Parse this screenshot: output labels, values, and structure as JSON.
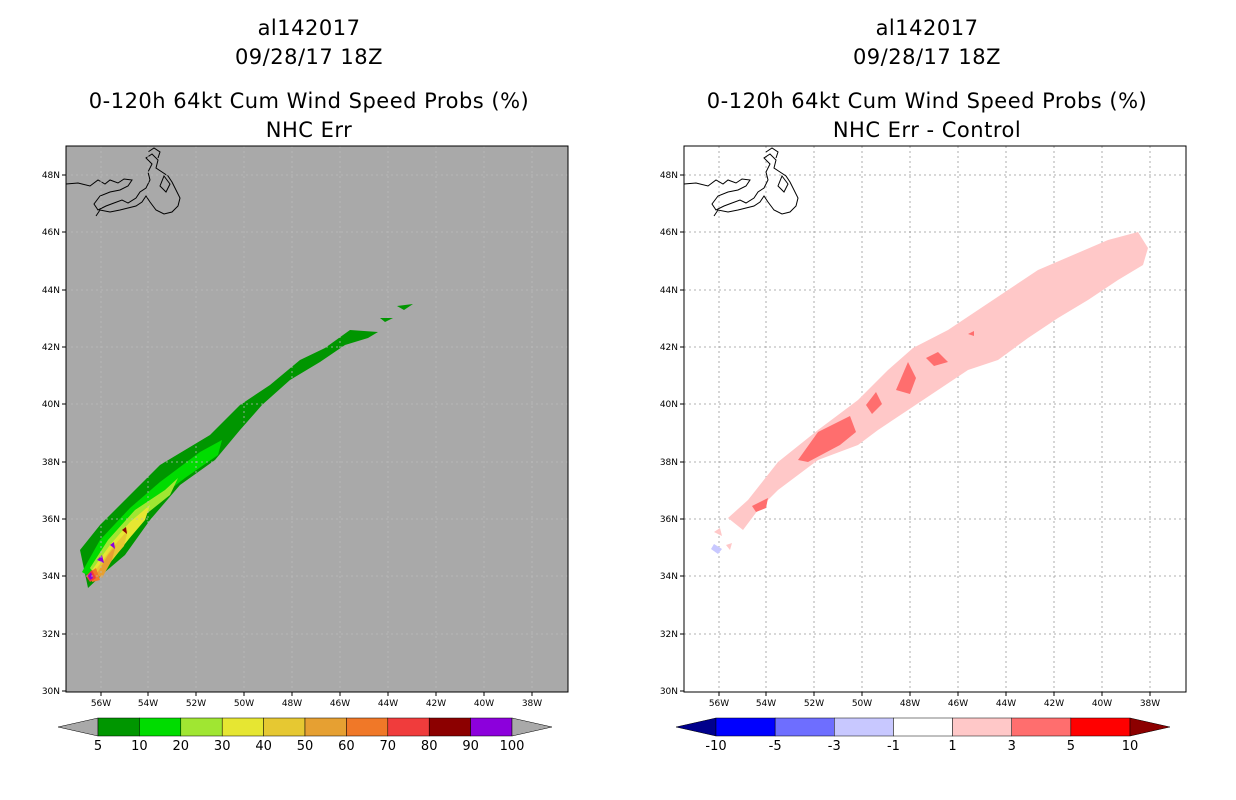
{
  "left": {
    "storm_id": "al142017",
    "date": "09/28/17 18Z",
    "product": "0-120h 64kt Cum Wind Speed Probs (%)",
    "subtitle": "NHC Err",
    "lat_labels": [
      "48N",
      "46N",
      "44N",
      "42N",
      "40N",
      "38N",
      "36N",
      "34N",
      "32N",
      "30N"
    ],
    "lon_labels": [
      "56W",
      "54W",
      "52W",
      "50W",
      "48W",
      "46W",
      "44W",
      "42W",
      "40W",
      "38W"
    ],
    "colorbar_labels": [
      "5",
      "10",
      "20",
      "30",
      "40",
      "50",
      "60",
      "70",
      "80",
      "90",
      "100"
    ],
    "colorbar_colors": [
      "#a9a9a9",
      "#009600",
      "#00dc00",
      "#a0e632",
      "#e6e632",
      "#e6c832",
      "#e6a032",
      "#f07828",
      "#f03c3c",
      "#8c0000",
      "#8c00dc",
      "#a9a9a9"
    ]
  },
  "right": {
    "storm_id": "al142017",
    "date": "09/28/17 18Z",
    "product": "0-120h 64kt Cum Wind Speed Probs (%)",
    "subtitle": "NHC Err - Control",
    "lat_labels": [
      "48N",
      "46N",
      "44N",
      "42N",
      "40N",
      "38N",
      "36N",
      "34N",
      "32N",
      "30N"
    ],
    "lon_labels": [
      "56W",
      "54W",
      "52W",
      "50W",
      "48W",
      "46W",
      "44W",
      "42W",
      "40W",
      "38W"
    ],
    "colorbar_labels": [
      "-10",
      "-5",
      "-3",
      "-1",
      "1",
      "3",
      "5",
      "10"
    ],
    "colorbar_colors": [
      "#00008c",
      "#0000ff",
      "#6e6eff",
      "#c8c8ff",
      "#ffffff",
      "#ffc8c8",
      "#ff6e6e",
      "#ff0000",
      "#8c0000"
    ]
  }
}
